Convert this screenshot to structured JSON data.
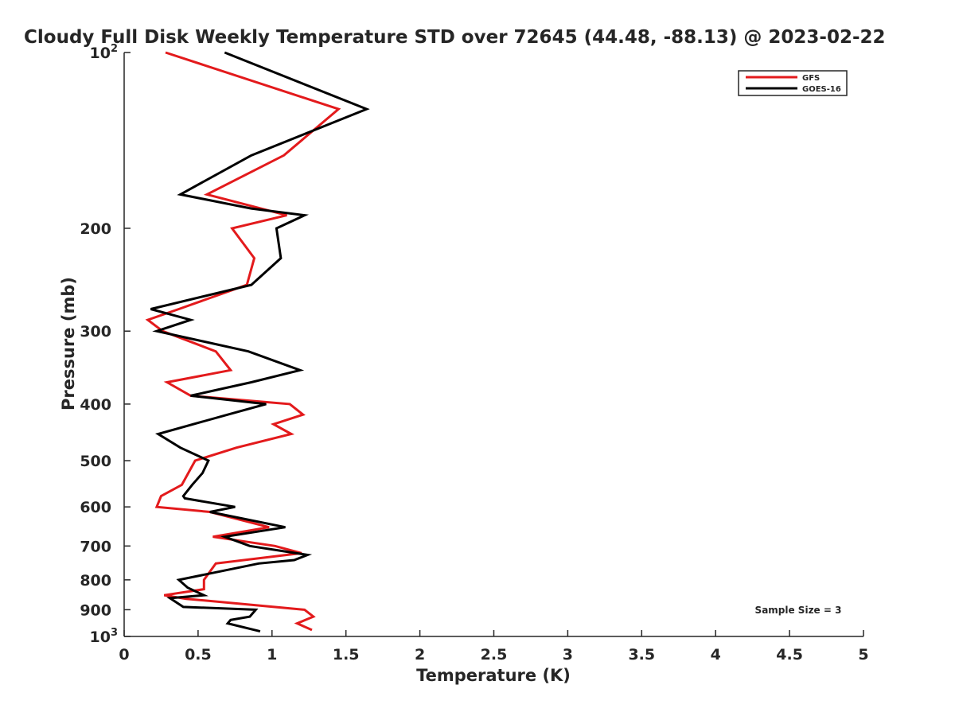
{
  "chart_data": {
    "type": "line",
    "title": "Cloudy Full Disk Weekly Temperature STD over 72645 (44.48, -88.13) @ 2023-02-22",
    "xlabel": "Temperature (K)",
    "ylabel": "Pressure (mb)",
    "xlim": [
      0,
      5
    ],
    "ylim": [
      100,
      1000
    ],
    "y_scale": "log",
    "y_reversed": true,
    "grid": false,
    "legend_position": "top-right",
    "annotation": "Sample Size = 3",
    "x_ticks": [
      {
        "value": 0,
        "label": "0"
      },
      {
        "value": 0.5,
        "label": "0.5"
      },
      {
        "value": 1,
        "label": "1"
      },
      {
        "value": 1.5,
        "label": "1.5"
      },
      {
        "value": 2,
        "label": "2"
      },
      {
        "value": 2.5,
        "label": "2.5"
      },
      {
        "value": 3,
        "label": "3"
      },
      {
        "value": 3.5,
        "label": "3.5"
      },
      {
        "value": 4,
        "label": "4"
      },
      {
        "value": 4.5,
        "label": "4.5"
      },
      {
        "value": 5,
        "label": "5"
      }
    ],
    "y_ticks": [
      {
        "value": 100,
        "label": "10",
        "sup": "2"
      },
      {
        "value": 200,
        "label": "200",
        "sup": ""
      },
      {
        "value": 300,
        "label": "300",
        "sup": ""
      },
      {
        "value": 400,
        "label": "400",
        "sup": ""
      },
      {
        "value": 500,
        "label": "500",
        "sup": ""
      },
      {
        "value": 600,
        "label": "600",
        "sup": ""
      },
      {
        "value": 700,
        "label": "700",
        "sup": ""
      },
      {
        "value": 800,
        "label": "800",
        "sup": ""
      },
      {
        "value": 900,
        "label": "900",
        "sup": ""
      },
      {
        "value": 1000,
        "label": "10",
        "sup": "3"
      }
    ],
    "series": [
      {
        "name": "GFS",
        "color": "#e31a1c",
        "points": [
          {
            "x": 0.28,
            "y": 100
          },
          {
            "x": 1.45,
            "y": 125
          },
          {
            "x": 1.08,
            "y": 150
          },
          {
            "x": 0.56,
            "y": 175
          },
          {
            "x": 1.1,
            "y": 190
          },
          {
            "x": 0.73,
            "y": 200
          },
          {
            "x": 0.88,
            "y": 225
          },
          {
            "x": 0.83,
            "y": 250
          },
          {
            "x": 0.37,
            "y": 275
          },
          {
            "x": 0.16,
            "y": 287
          },
          {
            "x": 0.26,
            "y": 300
          },
          {
            "x": 0.62,
            "y": 325
          },
          {
            "x": 0.72,
            "y": 350
          },
          {
            "x": 0.29,
            "y": 367
          },
          {
            "x": 0.45,
            "y": 387
          },
          {
            "x": 1.12,
            "y": 400
          },
          {
            "x": 1.21,
            "y": 417
          },
          {
            "x": 1.01,
            "y": 433
          },
          {
            "x": 1.13,
            "y": 450
          },
          {
            "x": 0.76,
            "y": 475
          },
          {
            "x": 0.48,
            "y": 500
          },
          {
            "x": 0.39,
            "y": 550
          },
          {
            "x": 0.25,
            "y": 575
          },
          {
            "x": 0.22,
            "y": 600
          },
          {
            "x": 0.58,
            "y": 612
          },
          {
            "x": 0.98,
            "y": 650
          },
          {
            "x": 0.6,
            "y": 675
          },
          {
            "x": 1.02,
            "y": 700
          },
          {
            "x": 1.2,
            "y": 720
          },
          {
            "x": 0.62,
            "y": 750
          },
          {
            "x": 0.54,
            "y": 800
          },
          {
            "x": 0.54,
            "y": 830
          },
          {
            "x": 0.27,
            "y": 850
          },
          {
            "x": 0.42,
            "y": 862
          },
          {
            "x": 1.22,
            "y": 900
          },
          {
            "x": 1.28,
            "y": 925
          },
          {
            "x": 1.17,
            "y": 950
          },
          {
            "x": 1.27,
            "y": 975
          }
        ]
      },
      {
        "name": "GOES-16",
        "color": "#000000",
        "points": [
          {
            "x": 0.68,
            "y": 100
          },
          {
            "x": 1.64,
            "y": 125
          },
          {
            "x": 0.86,
            "y": 150
          },
          {
            "x": 0.38,
            "y": 175
          },
          {
            "x": 0.86,
            "y": 185
          },
          {
            "x": 1.22,
            "y": 190
          },
          {
            "x": 1.03,
            "y": 200
          },
          {
            "x": 1.06,
            "y": 225
          },
          {
            "x": 0.86,
            "y": 250
          },
          {
            "x": 0.18,
            "y": 275
          },
          {
            "x": 0.45,
            "y": 287
          },
          {
            "x": 0.22,
            "y": 300
          },
          {
            "x": 0.84,
            "y": 325
          },
          {
            "x": 1.19,
            "y": 350
          },
          {
            "x": 0.86,
            "y": 367
          },
          {
            "x": 0.45,
            "y": 387
          },
          {
            "x": 0.96,
            "y": 400
          },
          {
            "x": 0.7,
            "y": 417
          },
          {
            "x": 0.23,
            "y": 450
          },
          {
            "x": 0.38,
            "y": 475
          },
          {
            "x": 0.57,
            "y": 500
          },
          {
            "x": 0.53,
            "y": 525
          },
          {
            "x": 0.46,
            "y": 550
          },
          {
            "x": 0.4,
            "y": 575
          },
          {
            "x": 0.41,
            "y": 580
          },
          {
            "x": 0.75,
            "y": 600
          },
          {
            "x": 0.58,
            "y": 612
          },
          {
            "x": 1.09,
            "y": 650
          },
          {
            "x": 0.68,
            "y": 675
          },
          {
            "x": 0.85,
            "y": 700
          },
          {
            "x": 1.24,
            "y": 725
          },
          {
            "x": 1.15,
            "y": 740
          },
          {
            "x": 0.91,
            "y": 750
          },
          {
            "x": 0.37,
            "y": 800
          },
          {
            "x": 0.43,
            "y": 825
          },
          {
            "x": 0.54,
            "y": 850
          },
          {
            "x": 0.31,
            "y": 860
          },
          {
            "x": 0.4,
            "y": 890
          },
          {
            "x": 0.89,
            "y": 900
          },
          {
            "x": 0.85,
            "y": 925
          },
          {
            "x": 0.72,
            "y": 937
          },
          {
            "x": 0.7,
            "y": 950
          },
          {
            "x": 0.92,
            "y": 980
          }
        ]
      }
    ]
  }
}
